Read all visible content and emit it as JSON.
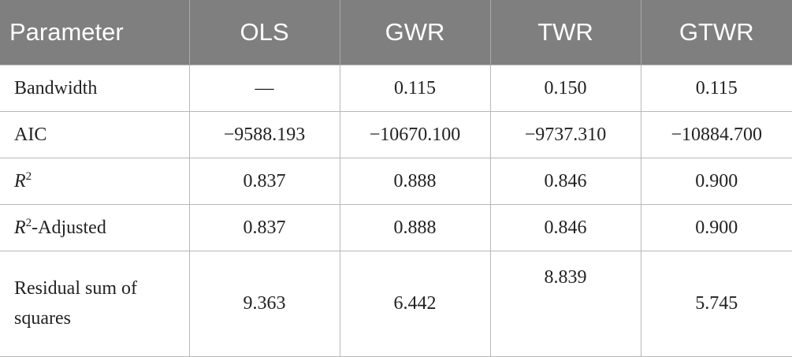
{
  "table": {
    "headers": [
      "Parameter",
      "OLS",
      "GWR",
      "TWR",
      "GTWR"
    ],
    "rows": [
      {
        "label": "Bandwidth",
        "values": [
          "—",
          "0.115",
          "0.150",
          "0.115"
        ]
      },
      {
        "label": "AIC",
        "values": [
          "−9588.193",
          "−10670.100",
          "−9737.310",
          "−10884.700"
        ]
      },
      {
        "label_var": "R",
        "label_sup": "2",
        "label_suffix": "",
        "values": [
          "0.837",
          "0.888",
          "0.846",
          "0.900"
        ]
      },
      {
        "label_var": "R",
        "label_sup": "2",
        "label_suffix": "-Adjusted",
        "values": [
          "0.837",
          "0.888",
          "0.846",
          "0.900"
        ]
      },
      {
        "label": "Residual sum of squares",
        "values": [
          "9.363",
          "6.442",
          "8.839",
          "5.745"
        ]
      }
    ]
  }
}
